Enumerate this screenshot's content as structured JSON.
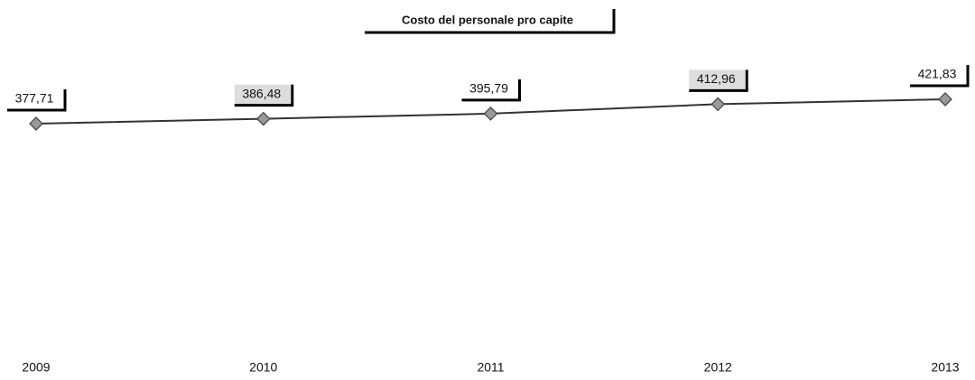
{
  "chart_data": {
    "type": "line",
    "title": "Costo del personale pro capite",
    "categories": [
      "2009",
      "2010",
      "2011",
      "2012",
      "2013"
    ],
    "series": [
      {
        "name": null,
        "color": "#333333",
        "values": [
          377.71,
          386.48,
          395.79,
          412.96,
          421.83
        ],
        "value_labels": [
          "377,71",
          "386,48",
          "395,79",
          "412,96",
          "421,83"
        ]
      }
    ],
    "ylim": [
      0,
      600
    ]
  }
}
